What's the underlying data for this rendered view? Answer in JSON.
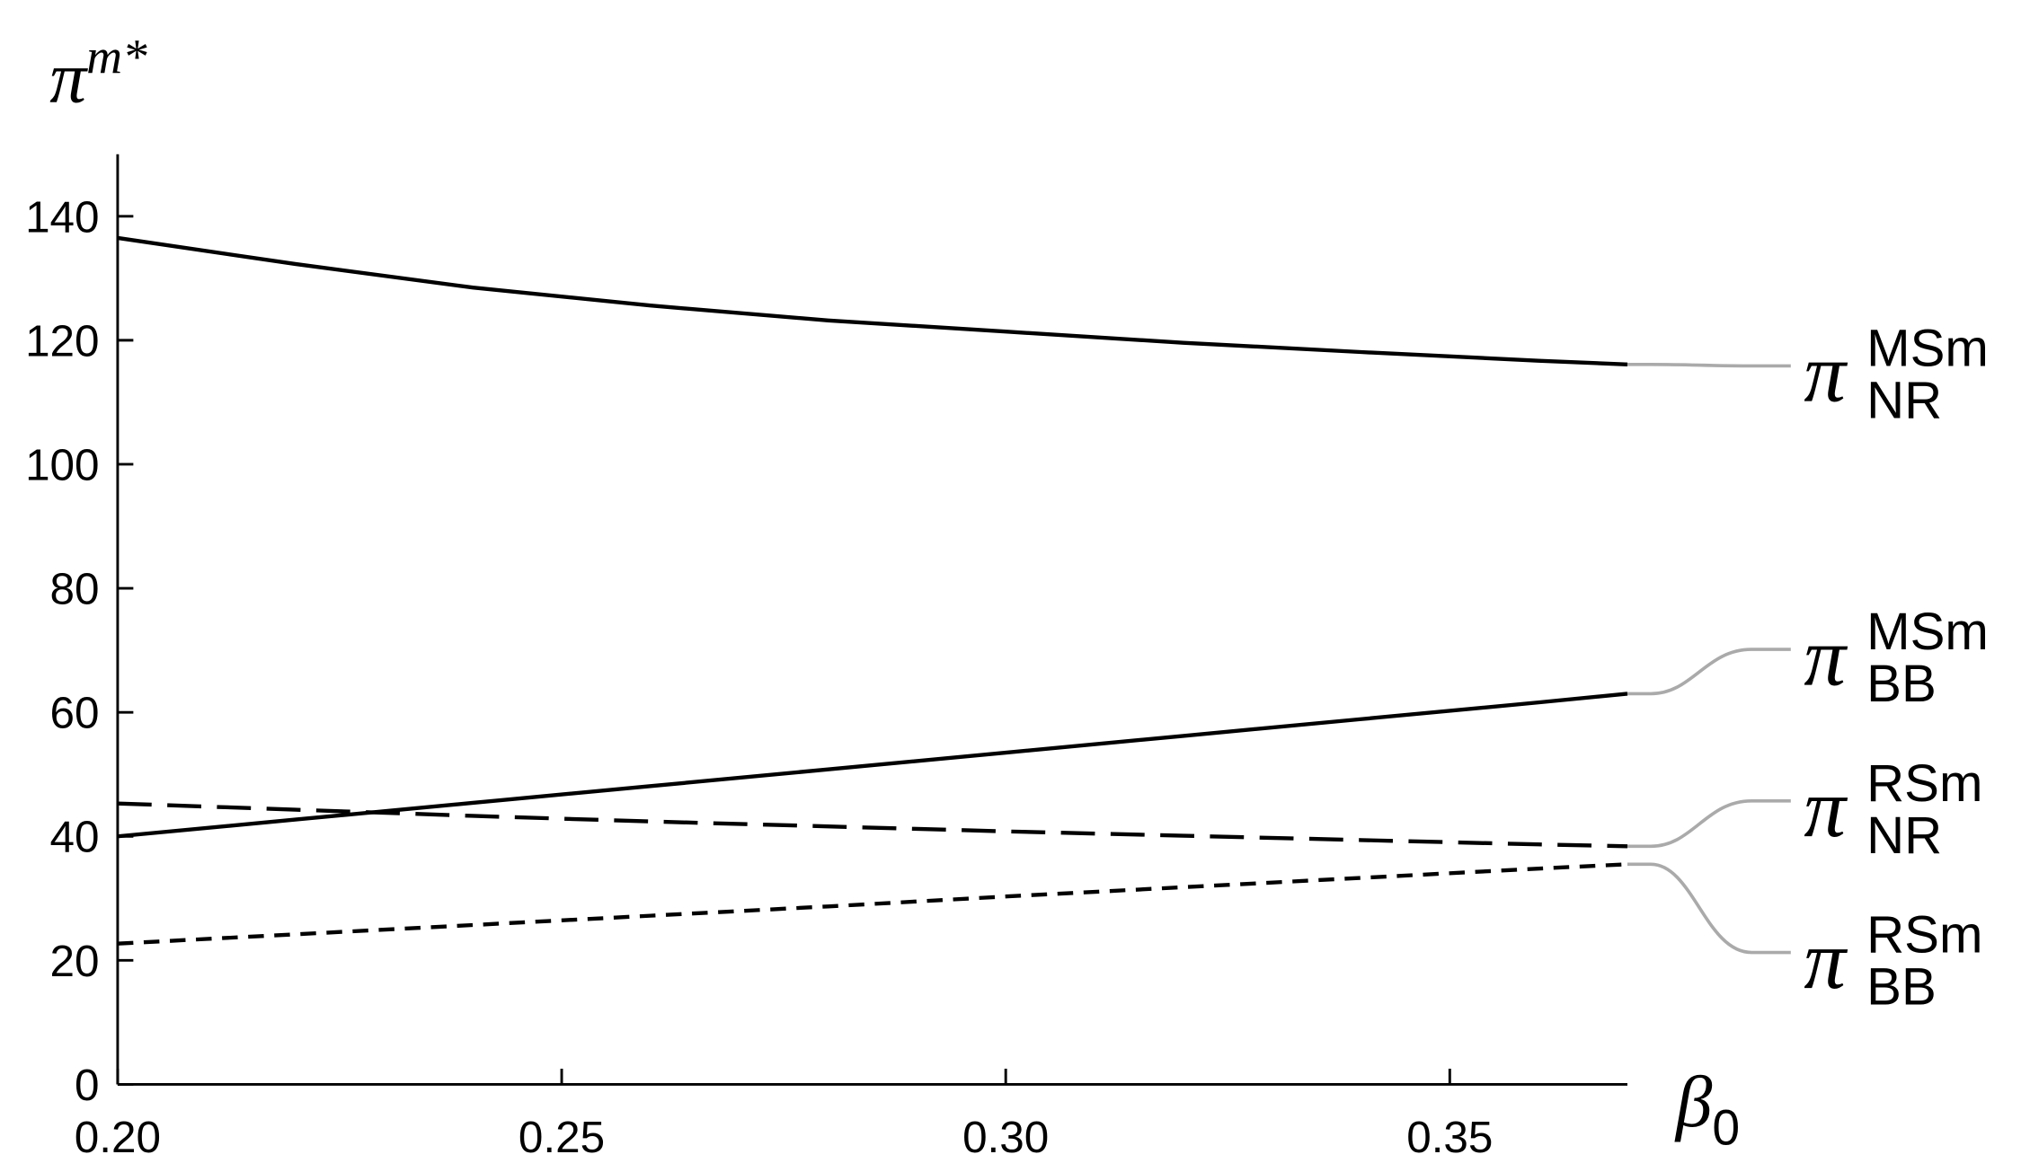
{
  "chart_data": {
    "type": "line",
    "x_label": {
      "base": "β",
      "sub": "0"
    },
    "y_label": {
      "base": "π",
      "sup": "m*"
    },
    "x": [
      0.2,
      0.22,
      0.24,
      0.26,
      0.28,
      0.3,
      0.32,
      0.34,
      0.36,
      0.37
    ],
    "series": [
      {
        "name": "π",
        "superscript": "MSm",
        "subscript": "NR",
        "color": "#000000",
        "dash": "solid",
        "values": [
          136.5,
          132.3,
          128.5,
          125.6,
          123.2,
          121.4,
          119.6,
          118.1,
          116.7,
          116.1
        ]
      },
      {
        "name": "π",
        "superscript": "MSm",
        "subscript": "BB",
        "color": "#000000",
        "dash": "solid",
        "values": [
          40,
          42.7,
          45.4,
          48.1,
          50.8,
          53.5,
          56.2,
          58.9,
          61.6,
          63
        ]
      },
      {
        "name": "π",
        "superscript": "RSm",
        "subscript": "NR",
        "color": "#000000",
        "dash": "long",
        "values": [
          45.3,
          44.3,
          43.3,
          42.4,
          41.6,
          40.8,
          40.1,
          39.4,
          38.7,
          38.4
        ]
      },
      {
        "name": "π",
        "superscript": "RSm",
        "subscript": "BB",
        "color": "#000000",
        "dash": "short",
        "values": [
          22.7,
          24.2,
          25.7,
          27.2,
          28.7,
          30.3,
          31.8,
          33.3,
          34.8,
          35.5
        ]
      }
    ],
    "xlim": [
      0.2,
      0.37
    ],
    "xticks": [
      {
        "value": 0.2,
        "label": "0.20"
      },
      0.25,
      {
        "value": 0.3,
        "label": "0.30"
      },
      0.35
    ],
    "ylim": [
      0,
      150
    ],
    "yticks": [
      0,
      20,
      40,
      60,
      80,
      100,
      120,
      140
    ],
    "grid": false,
    "label_color": "#aaaaaa"
  }
}
